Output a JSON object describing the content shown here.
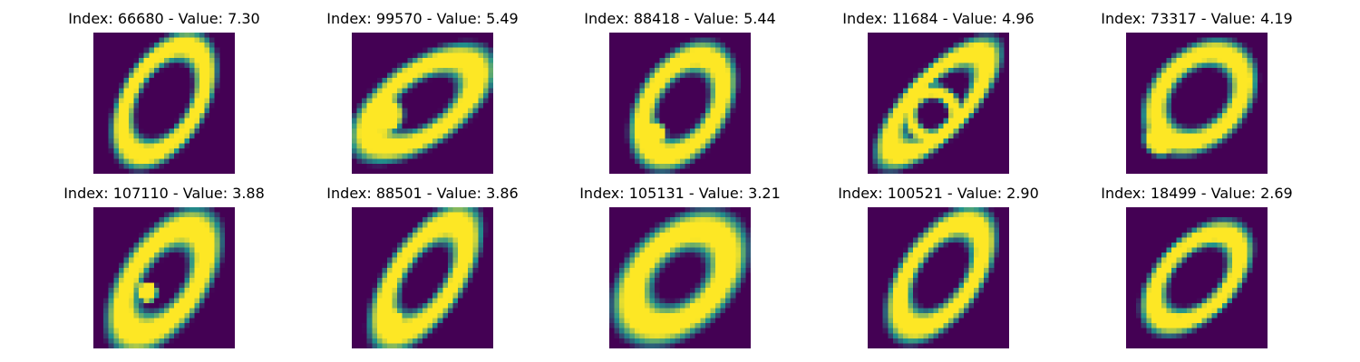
{
  "figure": {
    "colormap": "viridis",
    "background_color": "#440154",
    "stroke_color": "#fde725",
    "panels": [
      {
        "title": "Index: 66680 - Value: 7.30",
        "digit": "0"
      },
      {
        "title": "Index: 99570 - Value: 5.49",
        "digit": "0"
      },
      {
        "title": "Index: 88418 - Value: 5.44",
        "digit": "0"
      },
      {
        "title": "Index: 11684 - Value: 4.96",
        "digit": "0"
      },
      {
        "title": "Index: 73317 - Value: 4.19",
        "digit": "0"
      },
      {
        "title": "Index: 107110 - Value: 3.88",
        "digit": "0"
      },
      {
        "title": "Index: 88501 - Value: 3.86",
        "digit": "0"
      },
      {
        "title": "Index: 105131 - Value: 3.21",
        "digit": "0"
      },
      {
        "title": "Index: 100521 - Value: 2.90",
        "digit": "0"
      },
      {
        "title": "Index: 18499 - Value: 2.69",
        "digit": "0"
      }
    ]
  }
}
